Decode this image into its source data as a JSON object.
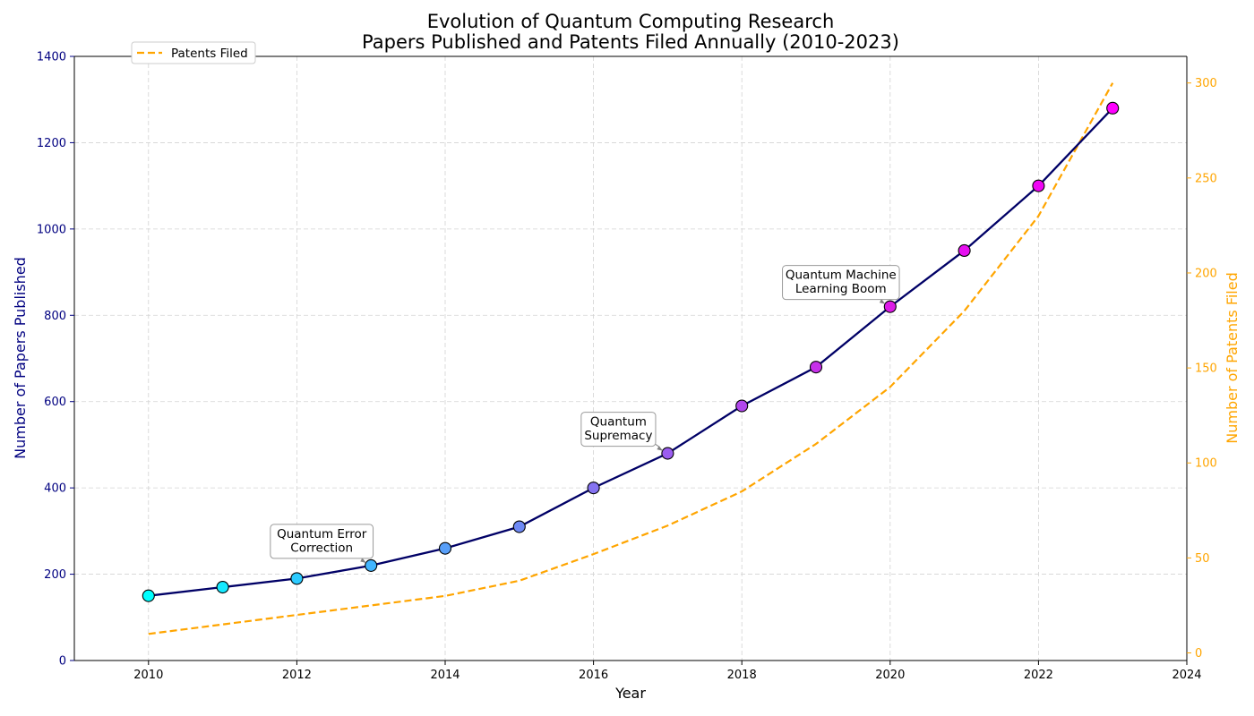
{
  "chart_data": {
    "type": "line",
    "title_line1": "Evolution of Quantum Computing Research",
    "title_line2": "Papers Published and Patents Filed Annually (2010-2023)",
    "xlabel": "Year",
    "ylabel_left": "Number of Papers Published",
    "ylabel_right": "Number of Patents Filed",
    "xlim": [
      2009,
      2024
    ],
    "x_ticks": [
      2010,
      2012,
      2014,
      2016,
      2018,
      2020,
      2022,
      2024
    ],
    "ylim_left": [
      0,
      1400
    ],
    "y_ticks_left": [
      0,
      200,
      400,
      600,
      800,
      1000,
      1200,
      1400
    ],
    "ylim_right": [
      -4,
      314
    ],
    "y_ticks_right": [
      0,
      50,
      100,
      150,
      200,
      250,
      300
    ],
    "x": [
      2010,
      2011,
      2012,
      2013,
      2014,
      2015,
      2016,
      2017,
      2018,
      2019,
      2020,
      2021,
      2022,
      2023
    ],
    "series": [
      {
        "name": "",
        "axis": "left",
        "style": "solid-with-markers",
        "color": "#000066",
        "values": [
          150,
          170,
          190,
          220,
          260,
          310,
          400,
          480,
          590,
          680,
          820,
          950,
          1100,
          1280
        ]
      },
      {
        "name": "Patents Filed",
        "axis": "right",
        "style": "dashed",
        "color": "#ffa500",
        "values": [
          10,
          15,
          20,
          25,
          30,
          38,
          52,
          67,
          85,
          110,
          140,
          180,
          230,
          300
        ]
      }
    ],
    "marker_colors": [
      "#00ffff",
      "#16e9ff",
      "#2ccbff",
      "#42b5ff",
      "#589ff9",
      "#6e89f5",
      "#8573f1",
      "#9b5df0",
      "#b147ed",
      "#c731ea",
      "#dd1be7",
      "#e60ff0",
      "#f005f5",
      "#ff00ff"
    ],
    "annotations": [
      {
        "lines": [
          "Quantum Error",
          "Correction"
        ],
        "x": 2013,
        "y": 220
      },
      {
        "lines": [
          "Quantum",
          "Supremacy"
        ],
        "x": 2017,
        "y": 480
      },
      {
        "lines": [
          "Quantum Machine",
          "Learning Boom"
        ],
        "x": 2020,
        "y": 820
      }
    ],
    "legend_position": "top-left",
    "grid": true,
    "colors": {
      "left_axis": "#000080",
      "right_axis": "#ffa500",
      "grid": "#d3d3d3"
    }
  }
}
